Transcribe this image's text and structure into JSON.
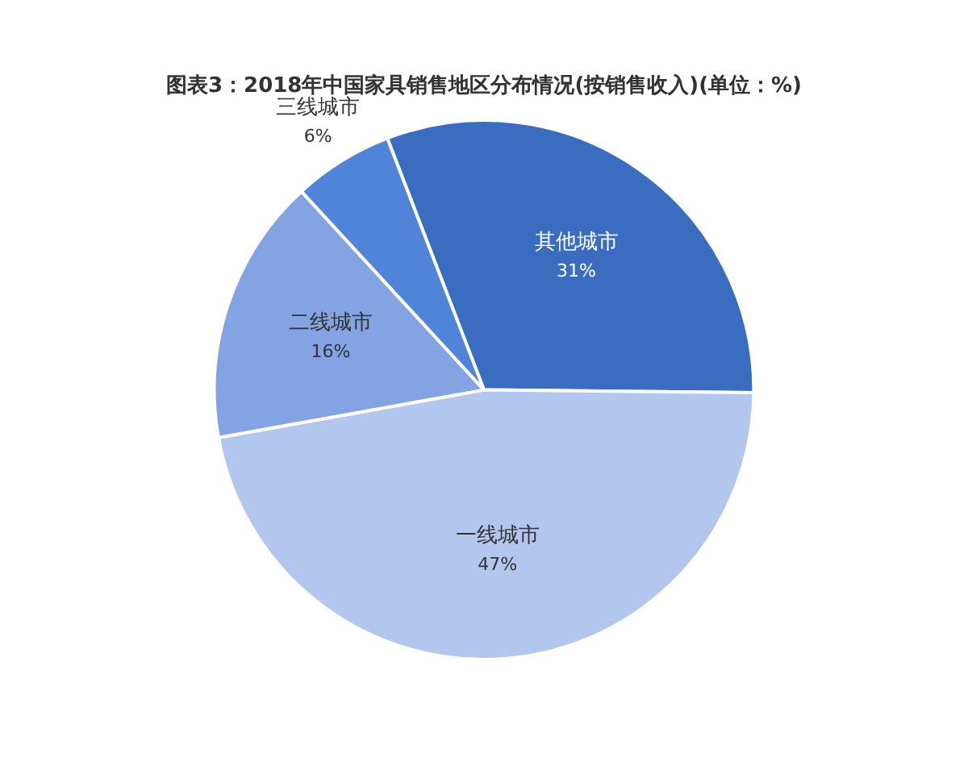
{
  "chart_data": {
    "type": "pie",
    "title": "图表3：2018年中国家具销售地区分布情况(按销售收入)(单位：%)",
    "categories": [
      "其他城市",
      "一线城市",
      "二线城市",
      "三线城市"
    ],
    "values": [
      31,
      47,
      16,
      6
    ],
    "value_labels": [
      "31%",
      "47%",
      "16%",
      "6%"
    ],
    "colors": [
      "#3a6dbf",
      "#b3c6ee",
      "#84a3e3",
      "#4f84d8"
    ],
    "legend": false
  }
}
